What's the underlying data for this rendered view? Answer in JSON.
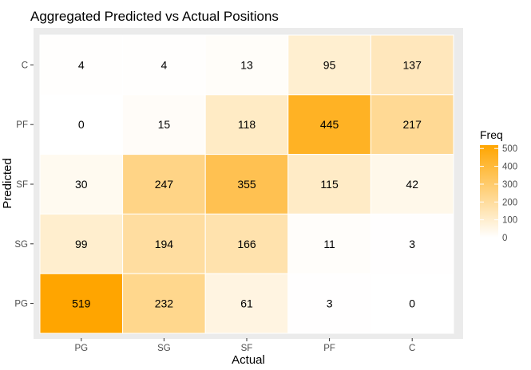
{
  "chart_data": {
    "type": "heatmap",
    "title": "Aggregated Predicted vs Actual Positions",
    "xlabel": "Actual",
    "ylabel": "Predicted",
    "x_categories": [
      "PG",
      "SG",
      "SF",
      "PF",
      "C"
    ],
    "y_categories": [
      "C",
      "PF",
      "SF",
      "SG",
      "PG"
    ],
    "values": [
      [
        4,
        4,
        13,
        95,
        137
      ],
      [
        0,
        15,
        118,
        445,
        217
      ],
      [
        30,
        247,
        355,
        115,
        42
      ],
      [
        99,
        194,
        166,
        11,
        3
      ],
      [
        519,
        232,
        61,
        3,
        0
      ]
    ],
    "legend": {
      "title": "Freq",
      "ticks": [
        500,
        400,
        300,
        200,
        100,
        0
      ],
      "range": [
        0,
        519
      ],
      "placement": "right"
    },
    "colors": {
      "low": "#ffffff",
      "high": "#ffa500",
      "panel_background": "#ebebeb",
      "axis_text": "#4d4d4d",
      "text": "#000000"
    },
    "grid": false
  }
}
